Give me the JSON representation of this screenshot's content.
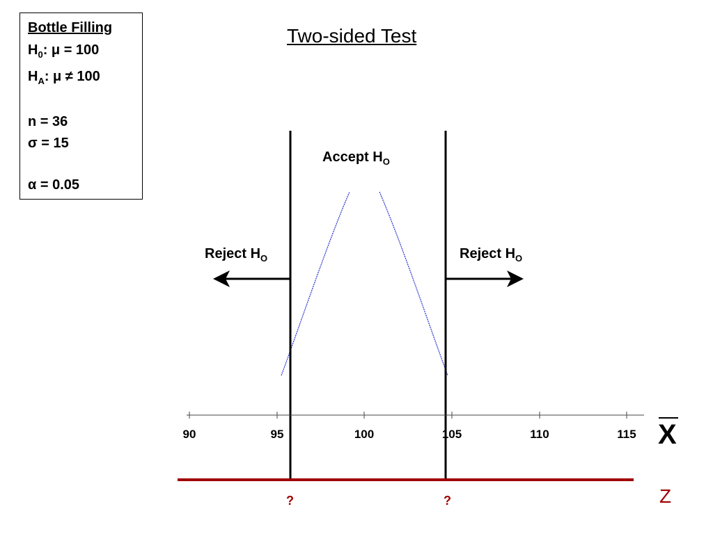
{
  "title": "Two-sided Test",
  "box": {
    "heading": "Bottle Filling",
    "null_hypothesis": {
      "symbol": "H",
      "subscript": "0",
      "text": ": μ = 100"
    },
    "alt_hypothesis": {
      "symbol": "H",
      "subscript": "A",
      "text": ": μ ≠ 100"
    },
    "n": "n = 36",
    "sigma": "σ = 15",
    "alpha": "α = 0.05"
  },
  "accept": {
    "text": "Accept H",
    "subscript": "O"
  },
  "reject_left": {
    "text": "Reject H",
    "subscript": "O"
  },
  "reject_right": {
    "text": "Reject H",
    "subscript": "O"
  },
  "axis": {
    "ticks": [
      "90",
      "95",
      "100",
      "105",
      "110",
      "115"
    ],
    "label": "X"
  },
  "z_axis": {
    "label": "Z",
    "markers": [
      "?",
      "?"
    ]
  }
}
